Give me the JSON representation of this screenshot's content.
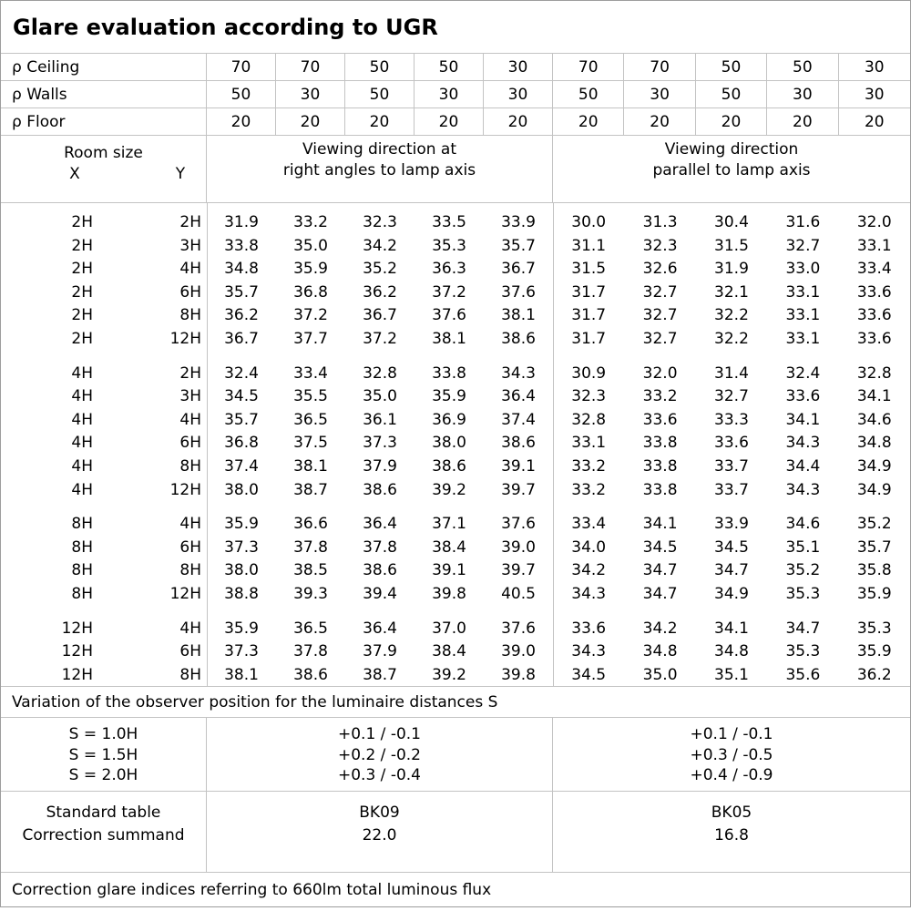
{
  "title": "Glare evaluation according to UGR",
  "colors": {
    "background": "#ffffff",
    "grid_line": "#c3c3c3",
    "outer_border": "#9d9d9d",
    "text": "#000000"
  },
  "reflectances": [
    {
      "label": "ρ Ceiling",
      "values": [
        "70",
        "70",
        "50",
        "50",
        "30",
        "70",
        "70",
        "50",
        "50",
        "30"
      ]
    },
    {
      "label": "ρ Walls",
      "values": [
        "50",
        "30",
        "50",
        "30",
        "30",
        "50",
        "30",
        "50",
        "30",
        "30"
      ]
    },
    {
      "label": "ρ Floor",
      "values": [
        "20",
        "20",
        "20",
        "20",
        "20",
        "20",
        "20",
        "20",
        "20",
        "20"
      ]
    }
  ],
  "room_header": {
    "room_size_label": "Room size",
    "x_label": "X",
    "y_label": "Y",
    "left_section_line1": "Viewing direction at",
    "left_section_line2": "right angles to lamp axis",
    "right_section_line1": "Viewing direction",
    "right_section_line2": "parallel to lamp axis"
  },
  "ugr_groups": [
    {
      "rows": [
        {
          "x": "2H",
          "y": "2H",
          "right_angles": [
            "31.9",
            "33.2",
            "32.3",
            "33.5",
            "33.9"
          ],
          "parallel": [
            "30.0",
            "31.3",
            "30.4",
            "31.6",
            "32.0"
          ]
        },
        {
          "x": "2H",
          "y": "3H",
          "right_angles": [
            "33.8",
            "35.0",
            "34.2",
            "35.3",
            "35.7"
          ],
          "parallel": [
            "31.1",
            "32.3",
            "31.5",
            "32.7",
            "33.1"
          ]
        },
        {
          "x": "2H",
          "y": "4H",
          "right_angles": [
            "34.8",
            "35.9",
            "35.2",
            "36.3",
            "36.7"
          ],
          "parallel": [
            "31.5",
            "32.6",
            "31.9",
            "33.0",
            "33.4"
          ]
        },
        {
          "x": "2H",
          "y": "6H",
          "right_angles": [
            "35.7",
            "36.8",
            "36.2",
            "37.2",
            "37.6"
          ],
          "parallel": [
            "31.7",
            "32.7",
            "32.1",
            "33.1",
            "33.6"
          ]
        },
        {
          "x": "2H",
          "y": "8H",
          "right_angles": [
            "36.2",
            "37.2",
            "36.7",
            "37.6",
            "38.1"
          ],
          "parallel": [
            "31.7",
            "32.7",
            "32.2",
            "33.1",
            "33.6"
          ]
        },
        {
          "x": "2H",
          "y": "12H",
          "right_angles": [
            "36.7",
            "37.7",
            "37.2",
            "38.1",
            "38.6"
          ],
          "parallel": [
            "31.7",
            "32.7",
            "32.2",
            "33.1",
            "33.6"
          ]
        }
      ]
    },
    {
      "rows": [
        {
          "x": "4H",
          "y": "2H",
          "right_angles": [
            "32.4",
            "33.4",
            "32.8",
            "33.8",
            "34.3"
          ],
          "parallel": [
            "30.9",
            "32.0",
            "31.4",
            "32.4",
            "32.8"
          ]
        },
        {
          "x": "4H",
          "y": "3H",
          "right_angles": [
            "34.5",
            "35.5",
            "35.0",
            "35.9",
            "36.4"
          ],
          "parallel": [
            "32.3",
            "33.2",
            "32.7",
            "33.6",
            "34.1"
          ]
        },
        {
          "x": "4H",
          "y": "4H",
          "right_angles": [
            "35.7",
            "36.5",
            "36.1",
            "36.9",
            "37.4"
          ],
          "parallel": [
            "32.8",
            "33.6",
            "33.3",
            "34.1",
            "34.6"
          ]
        },
        {
          "x": "4H",
          "y": "6H",
          "right_angles": [
            "36.8",
            "37.5",
            "37.3",
            "38.0",
            "38.6"
          ],
          "parallel": [
            "33.1",
            "33.8",
            "33.6",
            "34.3",
            "34.8"
          ]
        },
        {
          "x": "4H",
          "y": "8H",
          "right_angles": [
            "37.4",
            "38.1",
            "37.9",
            "38.6",
            "39.1"
          ],
          "parallel": [
            "33.2",
            "33.8",
            "33.7",
            "34.4",
            "34.9"
          ]
        },
        {
          "x": "4H",
          "y": "12H",
          "right_angles": [
            "38.0",
            "38.7",
            "38.6",
            "39.2",
            "39.7"
          ],
          "parallel": [
            "33.2",
            "33.8",
            "33.7",
            "34.3",
            "34.9"
          ]
        }
      ]
    },
    {
      "rows": [
        {
          "x": "8H",
          "y": "4H",
          "right_angles": [
            "35.9",
            "36.6",
            "36.4",
            "37.1",
            "37.6"
          ],
          "parallel": [
            "33.4",
            "34.1",
            "33.9",
            "34.6",
            "35.2"
          ]
        },
        {
          "x": "8H",
          "y": "6H",
          "right_angles": [
            "37.3",
            "37.8",
            "37.8",
            "38.4",
            "39.0"
          ],
          "parallel": [
            "34.0",
            "34.5",
            "34.5",
            "35.1",
            "35.7"
          ]
        },
        {
          "x": "8H",
          "y": "8H",
          "right_angles": [
            "38.0",
            "38.5",
            "38.6",
            "39.1",
            "39.7"
          ],
          "parallel": [
            "34.2",
            "34.7",
            "34.7",
            "35.2",
            "35.8"
          ]
        },
        {
          "x": "8H",
          "y": "12H",
          "right_angles": [
            "38.8",
            "39.3",
            "39.4",
            "39.8",
            "40.5"
          ],
          "parallel": [
            "34.3",
            "34.7",
            "34.9",
            "35.3",
            "35.9"
          ]
        }
      ]
    },
    {
      "rows": [
        {
          "x": "12H",
          "y": "4H",
          "right_angles": [
            "35.9",
            "36.5",
            "36.4",
            "37.0",
            "37.6"
          ],
          "parallel": [
            "33.6",
            "34.2",
            "34.1",
            "34.7",
            "35.3"
          ]
        },
        {
          "x": "12H",
          "y": "6H",
          "right_angles": [
            "37.3",
            "37.8",
            "37.9",
            "38.4",
            "39.0"
          ],
          "parallel": [
            "34.3",
            "34.8",
            "34.8",
            "35.3",
            "35.9"
          ]
        },
        {
          "x": "12H",
          "y": "8H",
          "right_angles": [
            "38.1",
            "38.6",
            "38.7",
            "39.2",
            "39.8"
          ],
          "parallel": [
            "34.5",
            "35.0",
            "35.1",
            "35.6",
            "36.2"
          ]
        }
      ]
    }
  ],
  "variation_note": "Variation of the observer position for the luminaire distances S",
  "spacing_rows": [
    {
      "label": "S = 1.0H",
      "right_angles": "+0.1 / -0.1",
      "parallel": "+0.1 / -0.1"
    },
    {
      "label": "S = 1.5H",
      "right_angles": "+0.2 / -0.2",
      "parallel": "+0.3 / -0.5"
    },
    {
      "label": "S = 2.0H",
      "right_angles": "+0.3 / -0.4",
      "parallel": "+0.4 / -0.9"
    }
  ],
  "summary": {
    "standard_table_label": "Standard table",
    "correction_summand_label": "Correction summand",
    "right_angles": {
      "standard_table": "BK09",
      "correction_summand": "22.0"
    },
    "parallel": {
      "standard_table": "BK05",
      "correction_summand": "16.8"
    }
  },
  "footnote": "Correction glare indices referring to 660lm total luminous flux"
}
